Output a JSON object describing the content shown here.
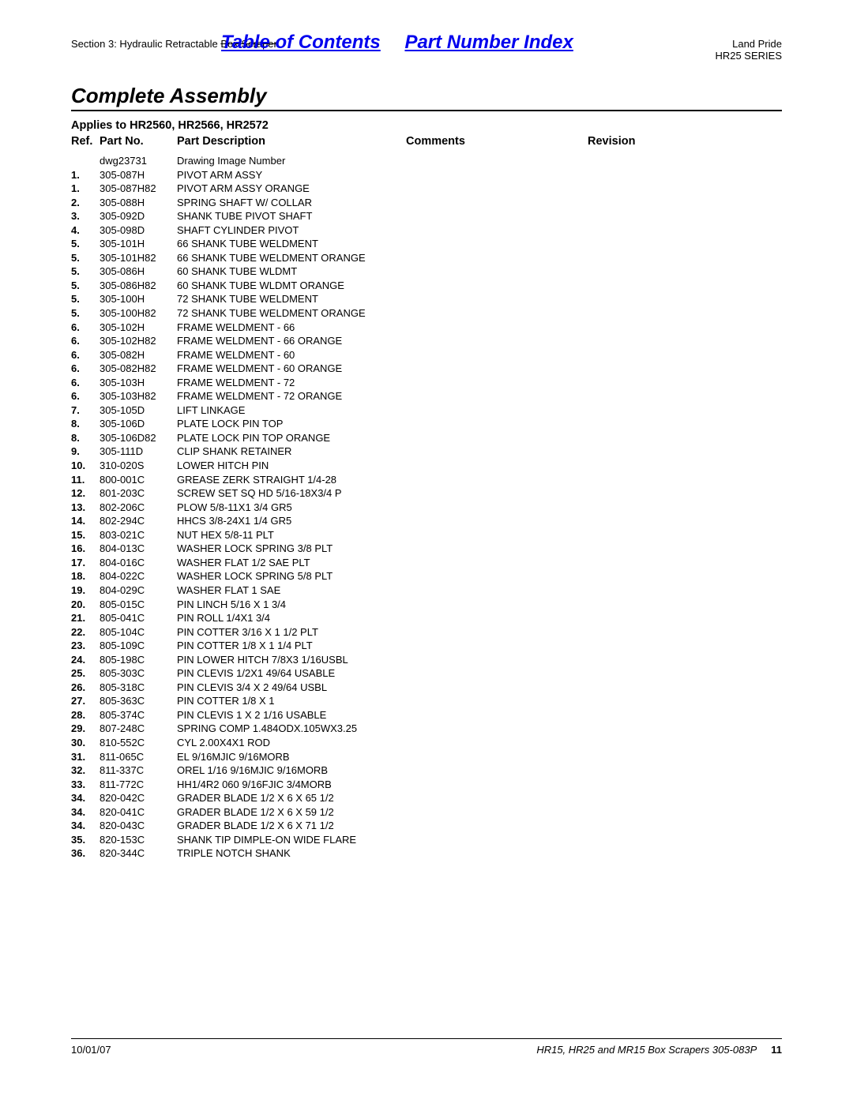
{
  "header": {
    "section_prefix": "Section 3: Hydraulic Retractable",
    "section_strike": "Box Scraper",
    "toc_label": "Table of Contents",
    "pni_label": "Part Number Index",
    "brand": "Land Pride",
    "series": "HR25 SERIES"
  },
  "title": "Complete Assembly",
  "applies": "Applies to HR2560, HR2566, HR2572",
  "columns": {
    "ref": "Ref.",
    "part": "Part No.",
    "desc": "Part Description",
    "comments": "Comments",
    "revision": "Revision"
  },
  "rows": [
    {
      "ref": "",
      "part": "dwg23731",
      "desc": "Drawing Image Number"
    },
    {
      "ref": "1.",
      "part": "305-087H",
      "desc": "PIVOT ARM ASSY"
    },
    {
      "ref": "1.",
      "part": "305-087H82",
      "desc": "PIVOT ARM ASSY ORANGE"
    },
    {
      "ref": "2.",
      "part": "305-088H",
      "desc": "SPRING SHAFT W/ COLLAR"
    },
    {
      "ref": "3.",
      "part": "305-092D",
      "desc": "SHANK TUBE PIVOT SHAFT"
    },
    {
      "ref": "4.",
      "part": "305-098D",
      "desc": "SHAFT CYLINDER PIVOT"
    },
    {
      "ref": "5.",
      "part": "305-101H",
      "desc": "66 SHANK TUBE WELDMENT"
    },
    {
      "ref": "5.",
      "part": "305-101H82",
      "desc": "66 SHANK TUBE WELDMENT ORANGE"
    },
    {
      "ref": "5.",
      "part": "305-086H",
      "desc": "60 SHANK TUBE WLDMT"
    },
    {
      "ref": "5.",
      "part": "305-086H82",
      "desc": "60 SHANK TUBE WLDMT ORANGE"
    },
    {
      "ref": "5.",
      "part": "305-100H",
      "desc": "72 SHANK TUBE WELDMENT"
    },
    {
      "ref": "5.",
      "part": "305-100H82",
      "desc": "72 SHANK TUBE WELDMENT ORANGE"
    },
    {
      "ref": "6.",
      "part": "305-102H",
      "desc": "FRAME WELDMENT - 66"
    },
    {
      "ref": "6.",
      "part": "305-102H82",
      "desc": "FRAME WELDMENT - 66 ORANGE"
    },
    {
      "ref": "6.",
      "part": "305-082H",
      "desc": "FRAME WELDMENT - 60"
    },
    {
      "ref": "6.",
      "part": "305-082H82",
      "desc": "FRAME WELDMENT - 60 ORANGE"
    },
    {
      "ref": "6.",
      "part": "305-103H",
      "desc": "FRAME WELDMENT - 72"
    },
    {
      "ref": "6.",
      "part": "305-103H82",
      "desc": "FRAME WELDMENT - 72 ORANGE"
    },
    {
      "ref": "7.",
      "part": "305-105D",
      "desc": "LIFT LINKAGE"
    },
    {
      "ref": "8.",
      "part": "305-106D",
      "desc": "PLATE LOCK PIN TOP"
    },
    {
      "ref": "8.",
      "part": "305-106D82",
      "desc": "PLATE LOCK PIN TOP ORANGE"
    },
    {
      "ref": "9.",
      "part": "305-111D",
      "desc": "CLIP SHANK RETAINER"
    },
    {
      "ref": "10.",
      "part": "310-020S",
      "desc": "LOWER HITCH PIN"
    },
    {
      "ref": "11.",
      "part": "800-001C",
      "desc": "GREASE ZERK STRAIGHT 1/4-28"
    },
    {
      "ref": "12.",
      "part": "801-203C",
      "desc": "SCREW SET SQ HD 5/16-18X3/4 P"
    },
    {
      "ref": "13.",
      "part": "802-206C",
      "desc": "PLOW 5/8-11X1 3/4 GR5"
    },
    {
      "ref": "14.",
      "part": "802-294C",
      "desc": "HHCS 3/8-24X1 1/4 GR5"
    },
    {
      "ref": "15.",
      "part": "803-021C",
      "desc": "NUT HEX 5/8-11 PLT"
    },
    {
      "ref": "16.",
      "part": "804-013C",
      "desc": "WASHER LOCK SPRING 3/8 PLT"
    },
    {
      "ref": "17.",
      "part": "804-016C",
      "desc": "WASHER FLAT 1/2 SAE PLT"
    },
    {
      "ref": "18.",
      "part": "804-022C",
      "desc": "WASHER LOCK SPRING 5/8 PLT"
    },
    {
      "ref": "19.",
      "part": "804-029C",
      "desc": "WASHER FLAT 1 SAE"
    },
    {
      "ref": "20.",
      "part": "805-015C",
      "desc": "PIN LINCH 5/16 X 1 3/4"
    },
    {
      "ref": "21.",
      "part": "805-041C",
      "desc": "PIN ROLL 1/4X1 3/4"
    },
    {
      "ref": "22.",
      "part": "805-104C",
      "desc": "PIN COTTER 3/16 X 1 1/2 PLT"
    },
    {
      "ref": "23.",
      "part": "805-109C",
      "desc": "PIN COTTER 1/8 X 1 1/4 PLT"
    },
    {
      "ref": "24.",
      "part": "805-198C",
      "desc": "PIN LOWER HITCH 7/8X3 1/16USBL"
    },
    {
      "ref": "25.",
      "part": "805-303C",
      "desc": "PIN CLEVIS 1/2X1 49/64 USABLE"
    },
    {
      "ref": "26.",
      "part": "805-318C",
      "desc": "PIN CLEVIS 3/4 X 2 49/64 USBL"
    },
    {
      "ref": "27.",
      "part": "805-363C",
      "desc": "PIN COTTER 1/8 X 1"
    },
    {
      "ref": "28.",
      "part": "805-374C",
      "desc": "PIN CLEVIS 1 X 2 1/16 USABLE"
    },
    {
      "ref": "29.",
      "part": "807-248C",
      "desc": "SPRING COMP 1.484ODX.105WX3.25"
    },
    {
      "ref": "30.",
      "part": "810-552C",
      "desc": "CYL 2.00X4X1 ROD"
    },
    {
      "ref": "31.",
      "part": "811-065C",
      "desc": "EL 9/16MJIC 9/16MORB"
    },
    {
      "ref": "32.",
      "part": "811-337C",
      "desc": "OREL 1/16 9/16MJIC 9/16MORB"
    },
    {
      "ref": "33.",
      "part": "811-772C",
      "desc": "HH1/4R2 060 9/16FJIC 3/4MORB"
    },
    {
      "ref": "34.",
      "part": "820-042C",
      "desc": "GRADER BLADE 1/2 X 6 X 65 1/2"
    },
    {
      "ref": "34.",
      "part": "820-041C",
      "desc": "GRADER BLADE 1/2 X 6 X 59 1/2"
    },
    {
      "ref": "34.",
      "part": "820-043C",
      "desc": "GRADER BLADE 1/2 X 6 X 71 1/2"
    },
    {
      "ref": "35.",
      "part": "820-153C",
      "desc": "SHANK TIP DIMPLE-ON WIDE FLARE"
    },
    {
      "ref": "36.",
      "part": "820-344C",
      "desc": "TRIPLE NOTCH SHANK"
    }
  ],
  "footer": {
    "date": "10/01/07",
    "doc": "HR15, HR25 and MR15 Box Scrapers 305-083P",
    "page": "11"
  }
}
